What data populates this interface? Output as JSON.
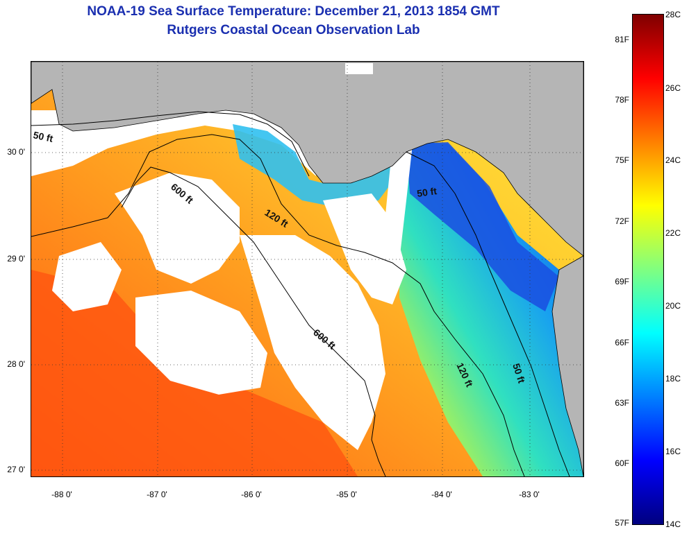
{
  "header": {
    "title": "NOAA-19 Sea Surface Temperature:  December 21, 2013 1854 GMT",
    "subtitle": "Rutgers Coastal Ocean Observation Lab"
  },
  "map": {
    "lat_ticks": [
      "30 0'",
      "29 0'",
      "28 0'",
      "27 0'"
    ],
    "lon_ticks": [
      "-88 0'",
      "-87 0'",
      "-86 0'",
      "-85 0'",
      "-84 0'",
      "-83 0'"
    ],
    "contour_labels": [
      "50 ft",
      "600 ft",
      "120 ft",
      "50 ft",
      "600 ft",
      "120 ft",
      "50 ft"
    ],
    "colors": {
      "land": "#b5b5b5",
      "clouds": "#ffffff"
    }
  },
  "colorbar": {
    "fahrenheit_labels": [
      "81F",
      "78F",
      "75F",
      "72F",
      "69F",
      "66F",
      "63F",
      "60F",
      "57F"
    ],
    "celsius_labels": [
      "28C",
      "26C",
      "24C",
      "22C",
      "20C",
      "18C",
      "16C",
      "14C"
    ],
    "colors": [
      "#7f0000",
      "#ff0000",
      "#ff8000",
      "#ffff00",
      "#80ff80",
      "#00ffff",
      "#0080ff",
      "#0000ff",
      "#00007f"
    ]
  }
}
